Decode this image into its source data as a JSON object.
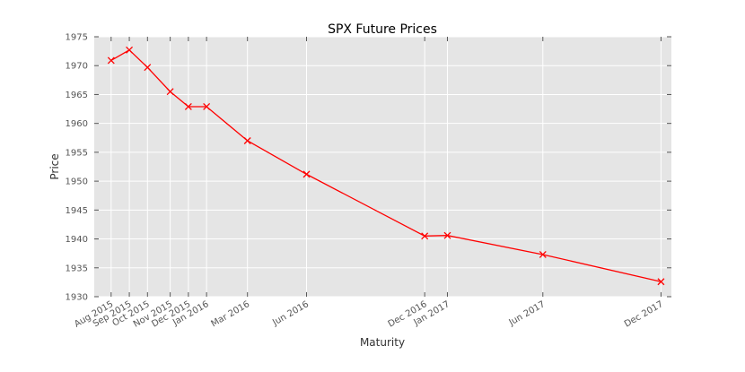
{
  "chart_data": {
    "type": "line",
    "title": "SPX Future Prices",
    "xlabel": "Maturity",
    "ylabel": "Price",
    "ylim": [
      1930,
      1975
    ],
    "yticks": [
      1930,
      1935,
      1940,
      1945,
      1950,
      1955,
      1960,
      1965,
      1970,
      1975
    ],
    "xlim": [
      "2015-07-26",
      "2017-12-31"
    ],
    "grid": true,
    "series": [
      {
        "color": "#ff0000",
        "marker": "x",
        "points": [
          {
            "date": "2015-08-21",
            "label": "Aug 2015",
            "value": 1970.9
          },
          {
            "date": "2015-09-18",
            "label": "Sep 2015",
            "value": 1972.7
          },
          {
            "date": "2015-10-16",
            "label": "Oct 2015",
            "value": 1969.7
          },
          {
            "date": "2015-11-20",
            "label": "Nov 2015",
            "value": 1965.5
          },
          {
            "date": "2015-12-18",
            "label": "Dec 2015",
            "value": 1962.9
          },
          {
            "date": "2016-01-15",
            "label": "Jan 2016",
            "value": 1962.9
          },
          {
            "date": "2016-03-18",
            "label": "Mar 2016",
            "value": 1957.0
          },
          {
            "date": "2016-06-17",
            "label": "Jun 2016",
            "value": 1951.2
          },
          {
            "date": "2016-12-16",
            "label": "Dec 2016",
            "value": 1940.5
          },
          {
            "date": "2017-01-20",
            "label": "Jan 2017",
            "value": 1940.6
          },
          {
            "date": "2017-06-16",
            "label": "Jun 2017",
            "value": 1937.3
          },
          {
            "date": "2017-12-15",
            "label": "Dec 2017",
            "value": 1932.6
          }
        ]
      }
    ]
  }
}
